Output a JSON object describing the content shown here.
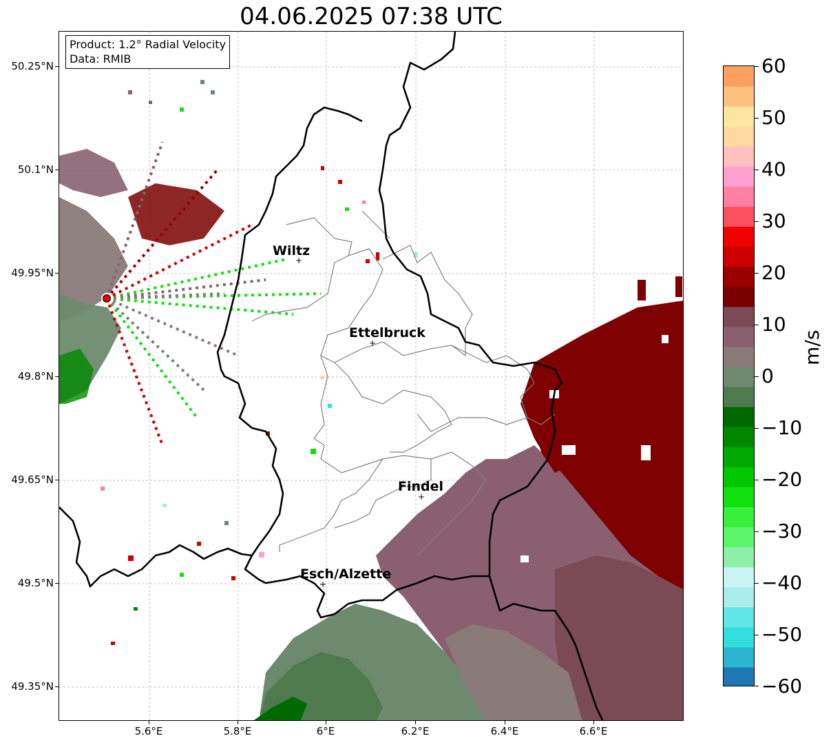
{
  "title": "04.06.2025 07:38 UTC",
  "info": {
    "product_line": "Product: 1.2° Radial Velocity",
    "data_line": "Data: RMIB"
  },
  "lat_ticks": [
    "50.25°N",
    "50.1°N",
    "49.95°N",
    "49.8°N",
    "49.65°N",
    "49.5°N",
    "49.35°N"
  ],
  "lon_ticks": [
    "5.6°E",
    "5.8°E",
    "6°E",
    "6.2°E",
    "6.4°E",
    "6.6°E"
  ],
  "colorbar": {
    "label": "m/s",
    "ticks": [
      "60",
      "50",
      "40",
      "30",
      "20",
      "10",
      "0",
      "−10",
      "−20",
      "−30",
      "−40",
      "−50",
      "−60"
    ],
    "range": [
      -60,
      60
    ],
    "colors": [
      "#1f77b4",
      "#2bb5d0",
      "#30dede",
      "#5fe6e6",
      "#a8ecec",
      "#c8f4f4",
      "#8ef0a8",
      "#5df56d",
      "#36f03a",
      "#10e010",
      "#00c800",
      "#00a800",
      "#008800",
      "#006a00",
      "#4e7a4e",
      "#6e8a6e",
      "#8a7a7a",
      "#8a6070",
      "#7a4a55",
      "#7a0000",
      "#990000",
      "#cc0000",
      "#f00000",
      "#ff5060",
      "#ff80a0",
      "#ffa0d0",
      "#ffc0c0",
      "#ffd8a0",
      "#ffe6a0",
      "#ffc080",
      "#ffa060"
    ]
  },
  "places": [
    {
      "name": "Wiltz",
      "lon": 5.93,
      "lat": 49.966
    },
    {
      "name": "Ettelbruck",
      "lon": 6.1,
      "lat": 49.847
    },
    {
      "name": "Findel",
      "lon": 6.21,
      "lat": 49.626
    },
    {
      "name": "Esch/Alzette",
      "lon": 5.99,
      "lat": 49.5
    }
  ],
  "radar_site": {
    "lon": 5.505,
    "lat": 49.914
  },
  "colors": {
    "radar_site": "#e00000",
    "border": "#000000",
    "canton_lines": "#808080",
    "gridlines": "#b0b0b0"
  }
}
